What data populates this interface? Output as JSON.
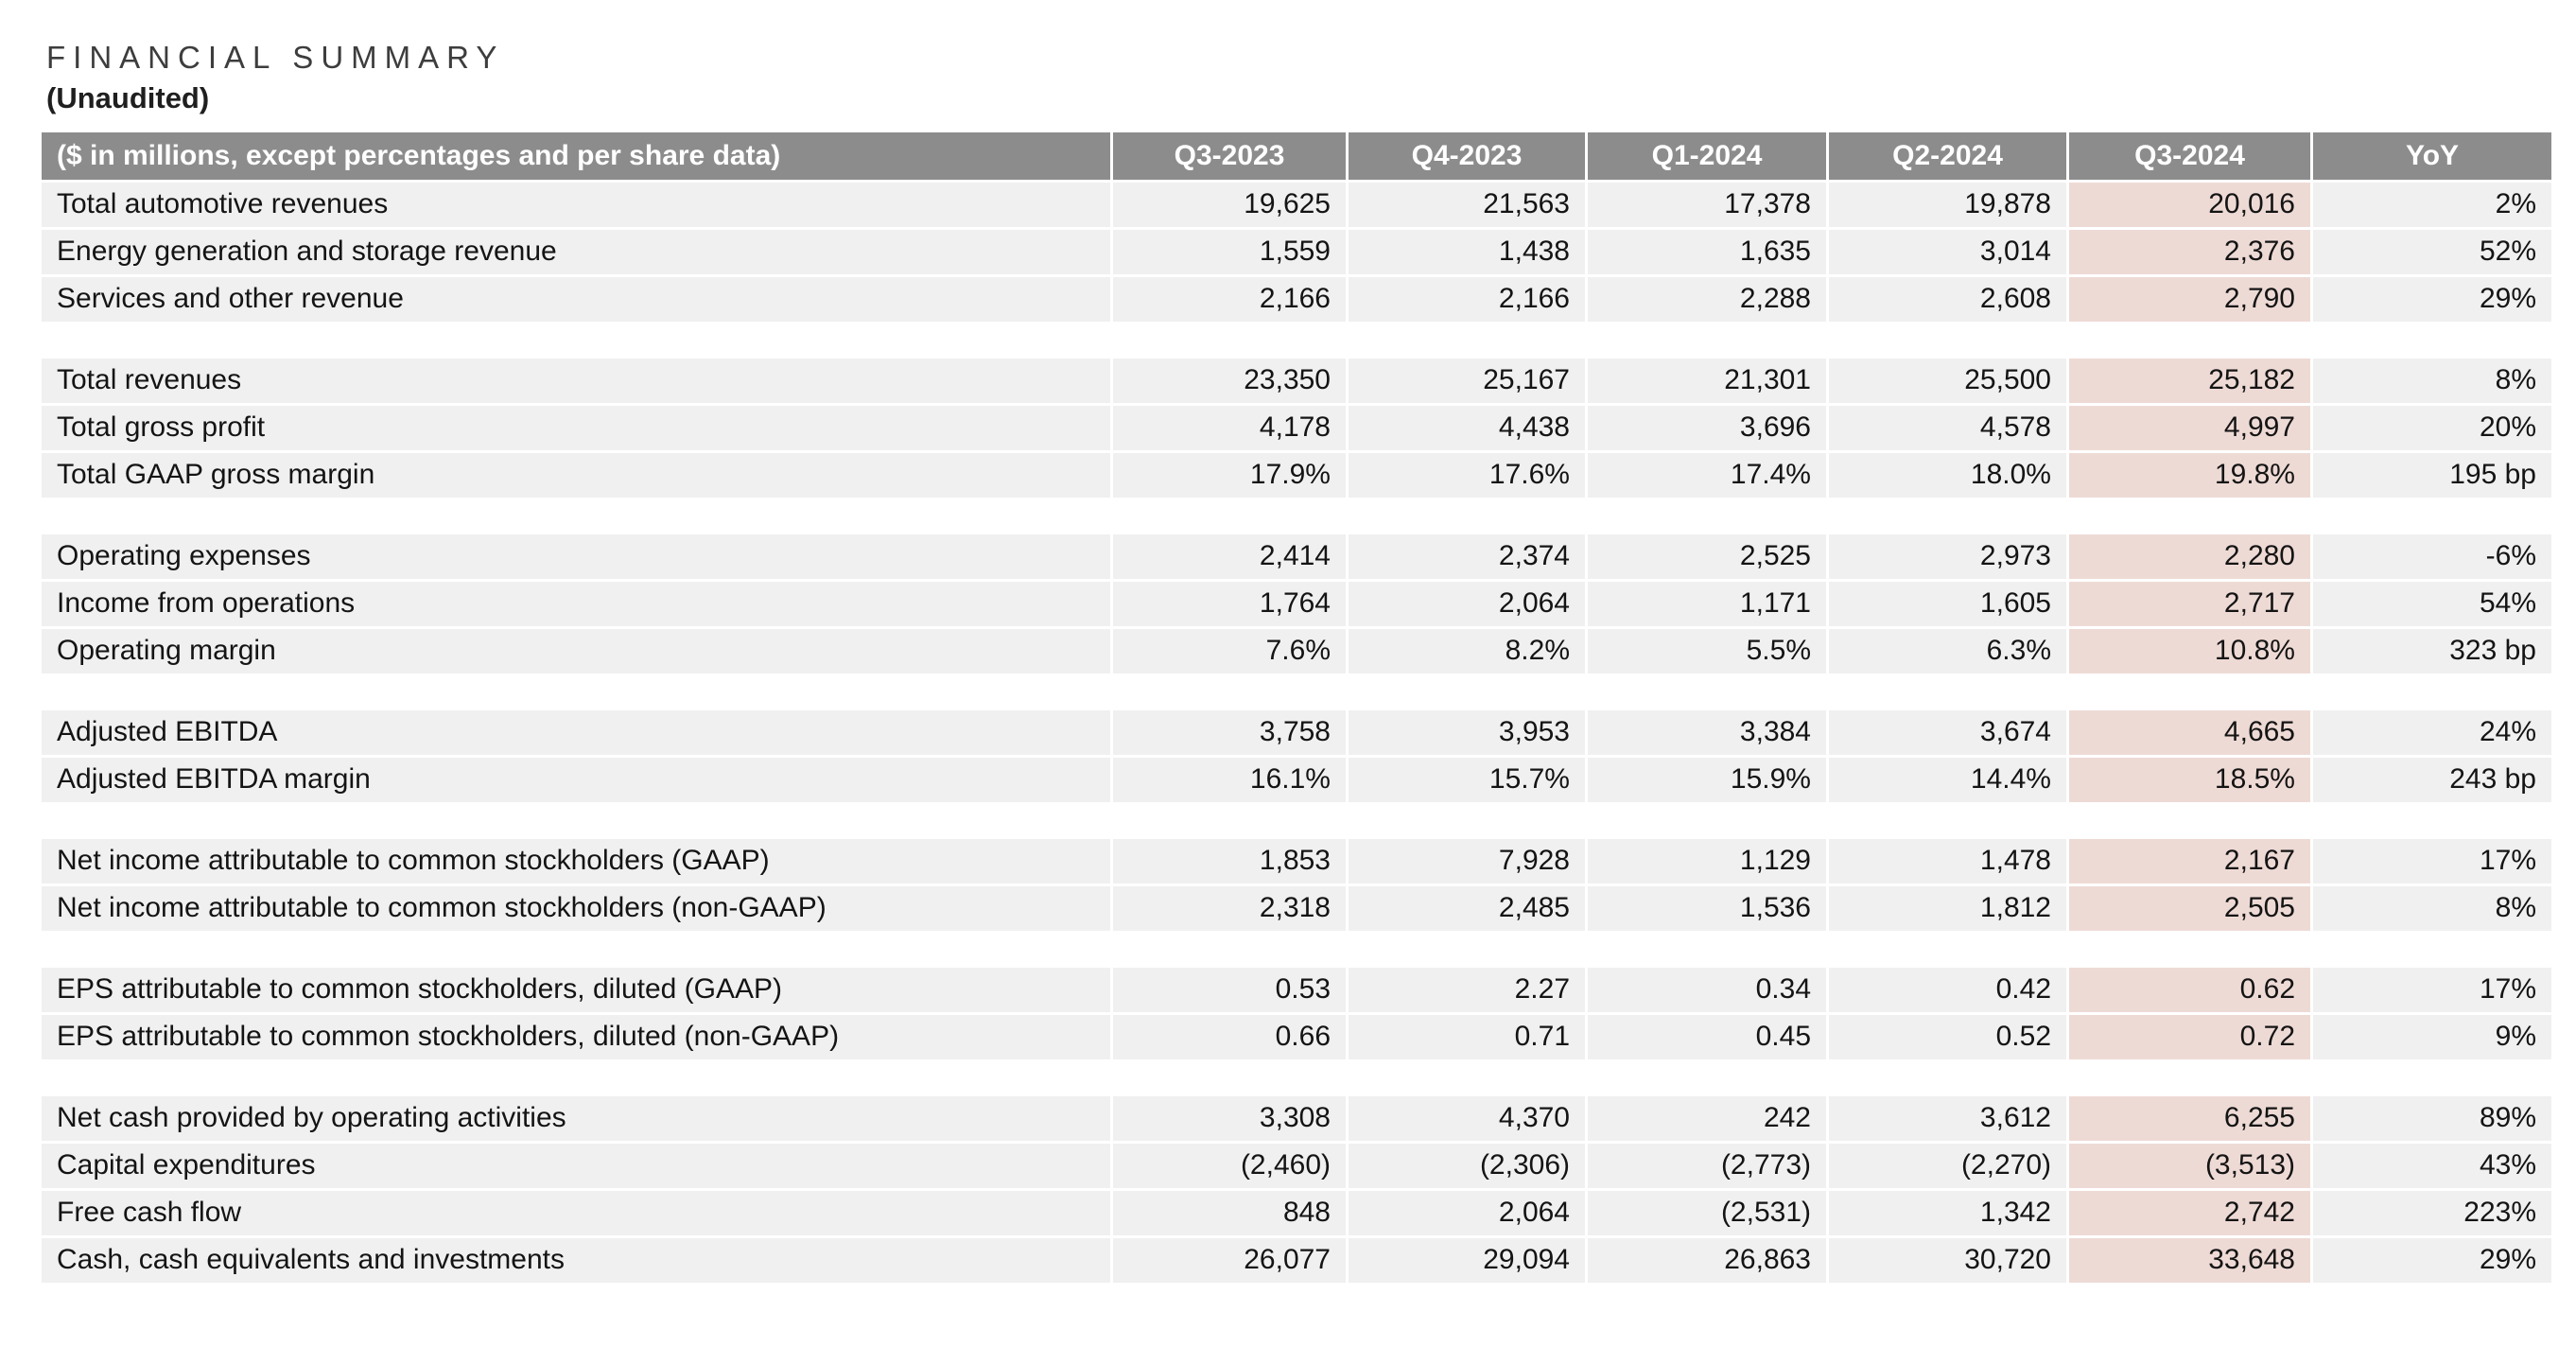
{
  "page": {
    "title": "FINANCIAL SUMMARY",
    "subtitle": "(Unaudited)"
  },
  "colors": {
    "header_bg": "#8c8c8c",
    "row_bg": "#f1f0f0",
    "highlight_bg": "#eedad5",
    "page_bg": "#ffffff",
    "header_text": "#ffffff",
    "body_text": "#141414",
    "title_text": "#3d3d3d"
  },
  "table": {
    "unit_label": "($ in millions, except percentages and per share data)",
    "columns": [
      "Q3-2023",
      "Q4-2023",
      "Q1-2024",
      "Q2-2024",
      "Q3-2024",
      "YoY"
    ],
    "highlighted_column": "Q3-2024",
    "highlight_value_index": 4,
    "sections": [
      {
        "rows": [
          {
            "label": "Total automotive revenues",
            "values": [
              "19,625",
              "21,563",
              "17,378",
              "19,878",
              "20,016",
              "2%"
            ]
          },
          {
            "label": "Energy generation and storage revenue",
            "values": [
              "1,559",
              "1,438",
              "1,635",
              "3,014",
              "2,376",
              "52%"
            ]
          },
          {
            "label": "Services and other revenue",
            "values": [
              "2,166",
              "2,166",
              "2,288",
              "2,608",
              "2,790",
              "29%"
            ]
          }
        ]
      },
      {
        "rows": [
          {
            "label": "Total revenues",
            "values": [
              "23,350",
              "25,167",
              "21,301",
              "25,500",
              "25,182",
              "8%"
            ]
          },
          {
            "label": "Total gross profit",
            "values": [
              "4,178",
              "4,438",
              "3,696",
              "4,578",
              "4,997",
              "20%"
            ]
          },
          {
            "label": "Total GAAP gross margin",
            "values": [
              "17.9%",
              "17.6%",
              "17.4%",
              "18.0%",
              "19.8%",
              "195 bp"
            ]
          }
        ]
      },
      {
        "rows": [
          {
            "label": "Operating expenses",
            "values": [
              "2,414",
              "2,374",
              "2,525",
              "2,973",
              "2,280",
              "-6%"
            ]
          },
          {
            "label": "Income from operations",
            "values": [
              "1,764",
              "2,064",
              "1,171",
              "1,605",
              "2,717",
              "54%"
            ]
          },
          {
            "label": "Operating margin",
            "values": [
              "7.6%",
              "8.2%",
              "5.5%",
              "6.3%",
              "10.8%",
              "323 bp"
            ]
          }
        ]
      },
      {
        "rows": [
          {
            "label": "Adjusted EBITDA",
            "values": [
              "3,758",
              "3,953",
              "3,384",
              "3,674",
              "4,665",
              "24%"
            ]
          },
          {
            "label": "Adjusted EBITDA margin",
            "values": [
              "16.1%",
              "15.7%",
              "15.9%",
              "14.4%",
              "18.5%",
              "243 bp"
            ]
          }
        ]
      },
      {
        "rows": [
          {
            "label": "Net income attributable to common stockholders (GAAP)",
            "values": [
              "1,853",
              "7,928",
              "1,129",
              "1,478",
              "2,167",
              "17%"
            ]
          },
          {
            "label": "Net income attributable to common stockholders (non-GAAP)",
            "values": [
              "2,318",
              "2,485",
              "1,536",
              "1,812",
              "2,505",
              "8%"
            ]
          }
        ]
      },
      {
        "rows": [
          {
            "label": "EPS attributable to common stockholders, diluted (GAAP)",
            "values": [
              "0.53",
              "2.27",
              "0.34",
              "0.42",
              "0.62",
              "17%"
            ]
          },
          {
            "label": "EPS attributable to common stockholders, diluted (non-GAAP)",
            "values": [
              "0.66",
              "0.71",
              "0.45",
              "0.52",
              "0.72",
              "9%"
            ]
          }
        ]
      },
      {
        "rows": [
          {
            "label": "Net cash provided by operating activities",
            "values": [
              "3,308",
              "4,370",
              "242",
              "3,612",
              "6,255",
              "89%"
            ]
          },
          {
            "label": "Capital expenditures",
            "values": [
              "(2,460)",
              "(2,306)",
              "(2,773)",
              "(2,270)",
              "(3,513)",
              "43%"
            ]
          },
          {
            "label": "Free cash flow",
            "values": [
              "848",
              "2,064",
              "(2,531)",
              "1,342",
              "2,742",
              "223%"
            ]
          },
          {
            "label": "Cash, cash equivalents and investments",
            "values": [
              "26,077",
              "29,094",
              "26,863",
              "30,720",
              "33,648",
              "29%"
            ]
          }
        ]
      }
    ]
  }
}
